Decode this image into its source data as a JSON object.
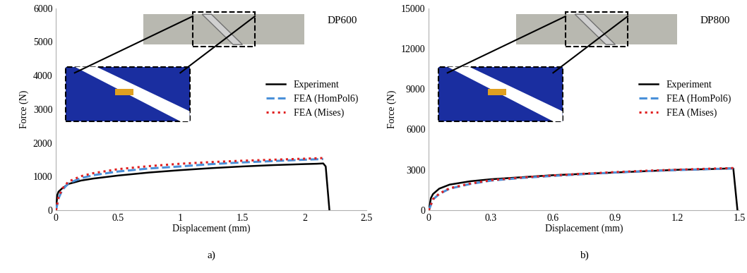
{
  "chart_data": [
    {
      "type": "line",
      "title": "DP600",
      "annotations": [
        "a)"
      ],
      "x_label": "Displacement (mm)",
      "y_label": "Force (N)",
      "xlim": [
        0,
        2.5
      ],
      "xticks": [
        0,
        0.5,
        1,
        1.5,
        2,
        2.5
      ],
      "ylim": [
        0,
        6000
      ],
      "yticks": [
        0,
        1000,
        2000,
        3000,
        4000,
        5000,
        6000
      ],
      "grid": false,
      "legend": "center right",
      "series": [
        {
          "name": "Experiment",
          "color": "#000000",
          "line_style": "solid",
          "x": [
            0,
            0.01,
            0.02,
            0.05,
            0.1,
            0.2,
            0.3,
            0.5,
            0.75,
            1.0,
            1.25,
            1.5,
            1.75,
            2.0,
            2.1,
            2.15,
            2.17,
            2.2
          ],
          "values": [
            0,
            450,
            550,
            650,
            780,
            880,
            940,
            1030,
            1120,
            1190,
            1250,
            1300,
            1340,
            1370,
            1380,
            1390,
            1300,
            0
          ]
        },
        {
          "name": "FEA (HomPol6)",
          "color": "#4a90d9",
          "line_style": "dashed",
          "x": [
            0,
            0.02,
            0.05,
            0.1,
            0.2,
            0.3,
            0.5,
            0.75,
            1.0,
            1.25,
            1.5,
            1.75,
            2.0,
            2.15
          ],
          "values": [
            0,
            350,
            600,
            800,
            950,
            1040,
            1150,
            1240,
            1300,
            1370,
            1420,
            1460,
            1500,
            1520
          ]
        },
        {
          "name": "FEA (Mises)",
          "color": "#e02020",
          "line_style": "dotted",
          "x": [
            0,
            0.02,
            0.05,
            0.1,
            0.2,
            0.3,
            0.5,
            0.75,
            1.0,
            1.25,
            1.5,
            1.75,
            2.0,
            2.15
          ],
          "values": [
            0,
            380,
            640,
            850,
            1010,
            1100,
            1220,
            1310,
            1380,
            1430,
            1470,
            1500,
            1530,
            1550
          ]
        }
      ]
    },
    {
      "type": "line",
      "title": "DP800",
      "annotations": [
        "b)"
      ],
      "x_label": "Displacement (mm)",
      "y_label": "Force (N)",
      "xlim": [
        0,
        1.5
      ],
      "xticks": [
        0,
        0.3,
        0.6,
        0.9,
        1.2,
        1.5
      ],
      "ylim": [
        0,
        15000
      ],
      "yticks": [
        0,
        3000,
        6000,
        9000,
        12000,
        15000
      ],
      "grid": false,
      "legend": "center right",
      "series": [
        {
          "name": "Experiment",
          "color": "#000000",
          "line_style": "solid",
          "x": [
            0,
            0.01,
            0.02,
            0.05,
            0.1,
            0.2,
            0.3,
            0.45,
            0.6,
            0.75,
            0.9,
            1.05,
            1.2,
            1.35,
            1.45,
            1.47,
            1.49
          ],
          "values": [
            0,
            900,
            1200,
            1600,
            1900,
            2150,
            2300,
            2450,
            2600,
            2700,
            2800,
            2900,
            3000,
            3050,
            3100,
            3100,
            0
          ]
        },
        {
          "name": "FEA (HomPol6)",
          "color": "#4a90d9",
          "line_style": "dashed",
          "x": [
            0,
            0.02,
            0.05,
            0.1,
            0.2,
            0.3,
            0.45,
            0.6,
            0.75,
            0.9,
            1.05,
            1.2,
            1.35,
            1.47
          ],
          "values": [
            0,
            800,
            1200,
            1600,
            1950,
            2200,
            2400,
            2550,
            2680,
            2800,
            2900,
            2980,
            3050,
            3100
          ]
        },
        {
          "name": "FEA (Mises)",
          "color": "#e02020",
          "line_style": "dotted",
          "x": [
            0,
            0.02,
            0.05,
            0.1,
            0.2,
            0.3,
            0.45,
            0.6,
            0.75,
            0.9,
            1.05,
            1.2,
            1.35,
            1.47
          ],
          "values": [
            0,
            820,
            1230,
            1630,
            1980,
            2230,
            2430,
            2580,
            2710,
            2830,
            2930,
            3010,
            3080,
            3130
          ]
        }
      ]
    }
  ]
}
